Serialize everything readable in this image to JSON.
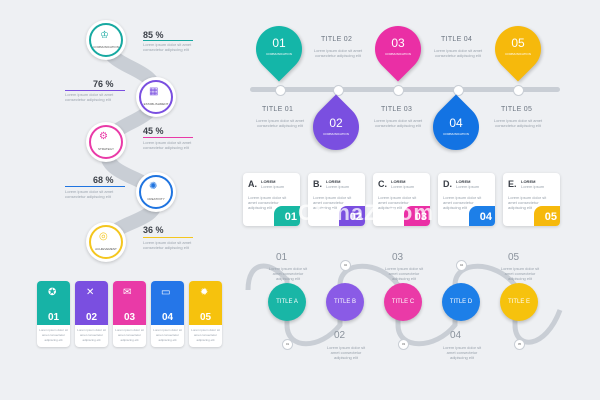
{
  "lorem": "Lorem ipsum dolor sit amet consectetur adipiscing elit",
  "lorem_short": "Lorem ipsum",
  "left_chain": [
    {
      "pct": "85 %",
      "label": "COMMUNICATION",
      "color": "#17a9a1"
    },
    {
      "pct": "76 %",
      "label": "ESTABLISHMENT",
      "color": "#7a4fe0"
    },
    {
      "pct": "45 %",
      "label": "STRATEGY",
      "color": "#e93aa7"
    },
    {
      "pct": "68 %",
      "label": "CREATIVITY",
      "color": "#1f74e0"
    },
    {
      "pct": "36 %",
      "label": "ACHIEVEMENT",
      "color": "#f4c61e"
    }
  ],
  "pins": [
    {
      "num": "01",
      "label": "COMMUNICATION",
      "color": "#14b6a8",
      "title": "TITLE 01"
    },
    {
      "num": "02",
      "label": "COMMUNICATION",
      "color": "#7a4fe0",
      "title": "TITLE 02"
    },
    {
      "num": "03",
      "label": "COMMUNICATION",
      "color": "#ea2fa5",
      "title": "TITLE 03"
    },
    {
      "num": "04",
      "label": "COMMUNICATION",
      "color": "#1373e3",
      "title": "TITLE 04"
    },
    {
      "num": "05",
      "label": "COMMUNICATION",
      "color": "#f6b90c",
      "title": "TITLE 05"
    }
  ],
  "cards": [
    {
      "letter": "A.",
      "title": "LOREM",
      "num": "01",
      "color": "#18b8a3"
    },
    {
      "letter": "B.",
      "title": "LOREM",
      "num": "02",
      "color": "#7a4fe0"
    },
    {
      "letter": "C.",
      "title": "LOREM",
      "num": "03",
      "color": "#ea2fa5"
    },
    {
      "letter": "D.",
      "title": "LOREM",
      "num": "04",
      "color": "#1d7fe8"
    },
    {
      "letter": "E.",
      "title": "LOREM",
      "num": "05",
      "color": "#f6b90c"
    }
  ],
  "tabs": [
    {
      "num": "01",
      "color": "#17b3a6"
    },
    {
      "num": "02",
      "color": "#7a4fe0"
    },
    {
      "num": "03",
      "color": "#e93aa7"
    },
    {
      "num": "04",
      "color": "#2576e8"
    },
    {
      "num": "05",
      "color": "#f6c20d"
    }
  ],
  "wave": [
    {
      "title": "TITLE A",
      "num": "01",
      "color": "#19b6a6"
    },
    {
      "title": "TITLE B",
      "num": "02",
      "color": "#8a5be6"
    },
    {
      "title": "TITLE C",
      "num": "03",
      "color": "#ea3aa7"
    },
    {
      "title": "TITLE D",
      "num": "04",
      "color": "#1d7fe8"
    },
    {
      "title": "TITLE E",
      "num": "05",
      "color": "#f6c20d"
    }
  ],
  "watermark": "ChinaZ.com"
}
